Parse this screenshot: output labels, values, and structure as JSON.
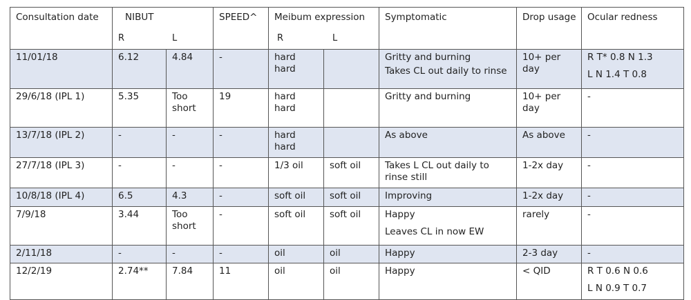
{
  "header": {
    "consultation_date": "Consultation date",
    "nibut": "NIBUT",
    "nibut_r": "R",
    "nibut_l": "L",
    "speed": "SPEED^",
    "meibum": "Meibum expression",
    "meibum_r": "R",
    "meibum_l": "L",
    "symptomatic": "Symptomatic",
    "drop_usage": "Drop usage",
    "ocular_redness": "Ocular redness"
  },
  "rows": [
    {
      "date": "11/01/18",
      "nibut_r": "6.12",
      "nibut_l": "4.84",
      "speed": "-",
      "meibum_r": "hard hard",
      "meibum_l": "",
      "symptom_1": "Gritty and burning",
      "symptom_2": "Takes CL out daily to rinse",
      "drop": "10+ per day",
      "redness_1": "R  T*  0.8   N 1.3",
      "redness_2": "L  N 1.4    T 0.8"
    },
    {
      "date": "29/6/18 (IPL 1)",
      "nibut_r": "5.35",
      "nibut_l": "Too short",
      "speed": "19",
      "meibum_r": "hard hard",
      "meibum_l": "",
      "symptom_1": "Gritty and burning",
      "symptom_2": "",
      "drop": "10+ per day",
      "redness_1": "-",
      "redness_2": ""
    },
    {
      "date": "13/7/18 (IPL  2)",
      "nibut_r": "-",
      "nibut_l": "-",
      "speed": "-",
      "meibum_r": "hard hard",
      "meibum_l": "",
      "symptom_1": "As above",
      "symptom_2": "",
      "drop": "As above",
      "redness_1": "-",
      "redness_2": ""
    },
    {
      "date": "27/7/18  (IPL  3)",
      "nibut_r": "-",
      "nibut_l": "-",
      "speed": "-",
      "meibum_r": "1/3 oil",
      "meibum_l": "soft oil",
      "symptom_1": "Takes L CL out daily to rinse still",
      "symptom_2": "",
      "drop": "1-2x day",
      "redness_1": "-",
      "redness_2": ""
    },
    {
      "date": "10/8/18  (IPL  4)",
      "nibut_r": "6.5",
      "nibut_l": "4.3",
      "speed": "-",
      "meibum_r": "soft oil",
      "meibum_l": "soft oil",
      "symptom_1": "Improving",
      "symptom_2": "",
      "drop": "1-2x day",
      "redness_1": "-",
      "redness_2": ""
    },
    {
      "date": "7/9/18",
      "nibut_r": "3.44",
      "nibut_l": "Too short",
      "speed": "-",
      "meibum_r": "soft oil",
      "meibum_l": "soft oil",
      "symptom_1": "Happy",
      "symptom_2": "Leaves CL in now EW",
      "drop": "rarely",
      "redness_1": "-",
      "redness_2": ""
    },
    {
      "date": "2/11/18",
      "nibut_r": "-",
      "nibut_l": "-",
      "speed": "-",
      "meibum_r": "oil",
      "meibum_l": "oil",
      "symptom_1": "Happy",
      "symptom_2": "",
      "drop": "2-3 day",
      "redness_1": "-",
      "redness_2": ""
    },
    {
      "date": "12/2/19",
      "nibut_r": "2.74**",
      "nibut_l": "7.84",
      "speed": "11",
      "meibum_r": "oil",
      "meibum_l": "oil",
      "symptom_1": "Happy",
      "symptom_2": "",
      "drop": "< QID",
      "redness_1": "R  T  0.6   N 0.6",
      "redness_2": "L  N   0.9   T 0.7"
    }
  ],
  "colors": {
    "shaded_row": "#dfe5f1",
    "border": "#555555",
    "text": "#222222"
  }
}
